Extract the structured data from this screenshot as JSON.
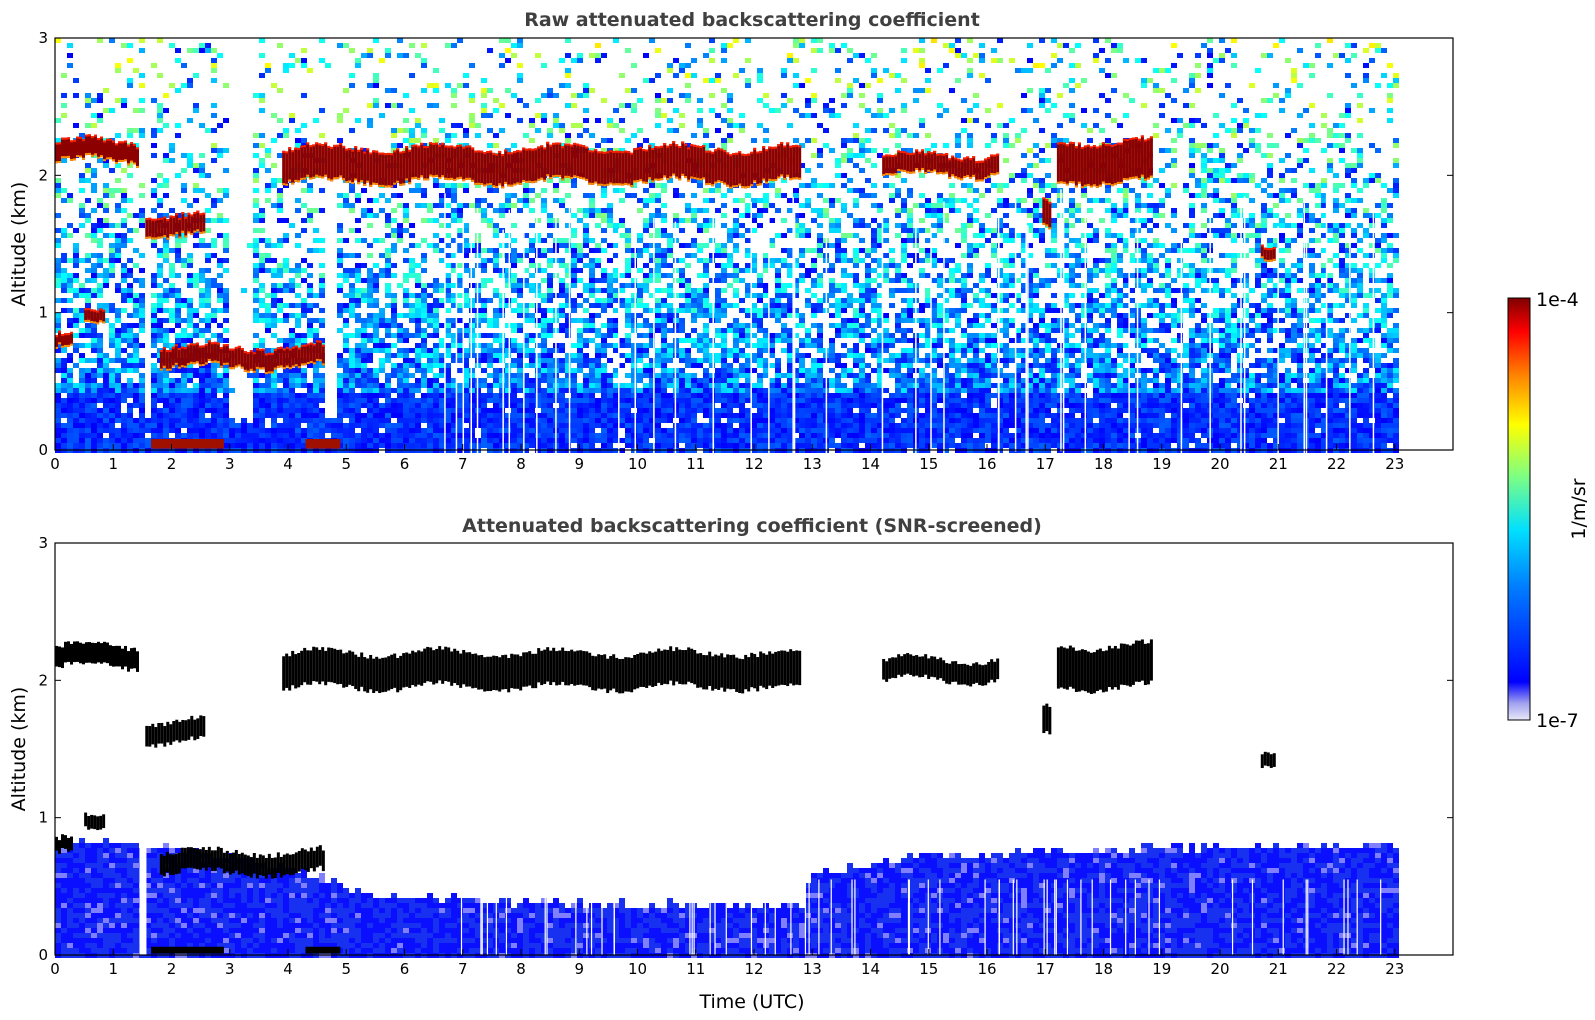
{
  "chart_data": [
    {
      "type": "heatmap",
      "title": "Raw attenuated backscattering coefficient",
      "xlabel": "",
      "ylabel": "Altitude (km)",
      "xlim": [
        0,
        24
      ],
      "ylim": [
        0,
        3
      ],
      "x_ticks": [
        "0",
        "1",
        "2",
        "3",
        "4",
        "5",
        "6",
        "7",
        "8",
        "9",
        "10",
        "11",
        "12",
        "13",
        "14",
        "15",
        "16",
        "17",
        "18",
        "19",
        "20",
        "21",
        "22",
        "23"
      ],
      "y_ticks": [
        "0",
        "1",
        "2",
        "3"
      ],
      "data_end_hour": 23.15,
      "noise_gaps_hours": [
        [
          1.45,
          1.57
        ],
        [
          2.95,
          3.32
        ],
        [
          4.62,
          4.82
        ]
      ],
      "layers": [
        {
          "name": "cloud-top-layer",
          "x": [
            0.0,
            1.4
          ],
          "y": [
            2.1,
            2.25
          ],
          "intensity": "high"
        },
        {
          "name": "cloud-top-layer",
          "x": [
            3.9,
            12.8
          ],
          "y": [
            1.95,
            2.2
          ],
          "intensity": "high"
        },
        {
          "name": "cloud-top-layer",
          "x": [
            14.2,
            16.2
          ],
          "y": [
            2.0,
            2.15
          ],
          "intensity": "high"
        },
        {
          "name": "cloud-top-layer",
          "x": [
            17.2,
            18.8
          ],
          "y": [
            1.95,
            2.25
          ],
          "intensity": "high"
        },
        {
          "name": "cloud-mid",
          "x": [
            1.55,
            2.55
          ],
          "y": [
            1.55,
            1.7
          ],
          "intensity": "high"
        },
        {
          "name": "cloud-mid",
          "x": [
            16.95,
            17.1
          ],
          "y": [
            1.6,
            1.8
          ],
          "intensity": "high"
        },
        {
          "name": "cloud-mid",
          "x": [
            20.7,
            20.95
          ],
          "y": [
            1.35,
            1.45
          ],
          "intensity": "high"
        },
        {
          "name": "low-cloud",
          "x": [
            1.8,
            4.6
          ],
          "y": [
            0.6,
            0.75
          ],
          "intensity": "high"
        },
        {
          "name": "low-cloud",
          "x": [
            0.0,
            0.3
          ],
          "y": [
            0.75,
            0.85
          ],
          "intensity": "high"
        },
        {
          "name": "low-cloud",
          "x": [
            0.5,
            0.85
          ],
          "y": [
            0.9,
            1.0
          ],
          "intensity": "high"
        }
      ]
    },
    {
      "type": "heatmap",
      "title": "Attenuated backscattering coefficient (SNR-screened)",
      "xlabel": "Time (UTC)",
      "ylabel": "Altitude (km)",
      "xlim": [
        0,
        24
      ],
      "ylim": [
        0,
        3
      ],
      "x_ticks": [
        "0",
        "1",
        "2",
        "3",
        "4",
        "5",
        "6",
        "7",
        "8",
        "9",
        "10",
        "11",
        "12",
        "13",
        "14",
        "15",
        "16",
        "17",
        "18",
        "19",
        "20",
        "21",
        "22",
        "23"
      ],
      "y_ticks": [
        "0",
        "1",
        "2",
        "3"
      ],
      "data_end_hour": 23.15,
      "boundary_layer_top_km": [
        [
          0,
          0.85
        ],
        [
          2,
          0.8
        ],
        [
          4,
          0.65
        ],
        [
          5.5,
          0.45
        ],
        [
          8,
          0.4
        ],
        [
          12.8,
          0.38
        ],
        [
          12.9,
          0.6
        ],
        [
          15,
          0.75
        ],
        [
          19,
          0.8
        ],
        [
          23.15,
          0.8
        ]
      ],
      "cloud_color": "#000000"
    }
  ],
  "colorbar": {
    "label": "1/m/sr",
    "max_label": "1e-4",
    "min_label": "1e-7",
    "colors": [
      "#e8e8f8",
      "#a0a0f0",
      "#0000ff",
      "#0080ff",
      "#00ffff",
      "#80ff80",
      "#ffff00",
      "#ff8000",
      "#ff0000",
      "#800000"
    ]
  }
}
